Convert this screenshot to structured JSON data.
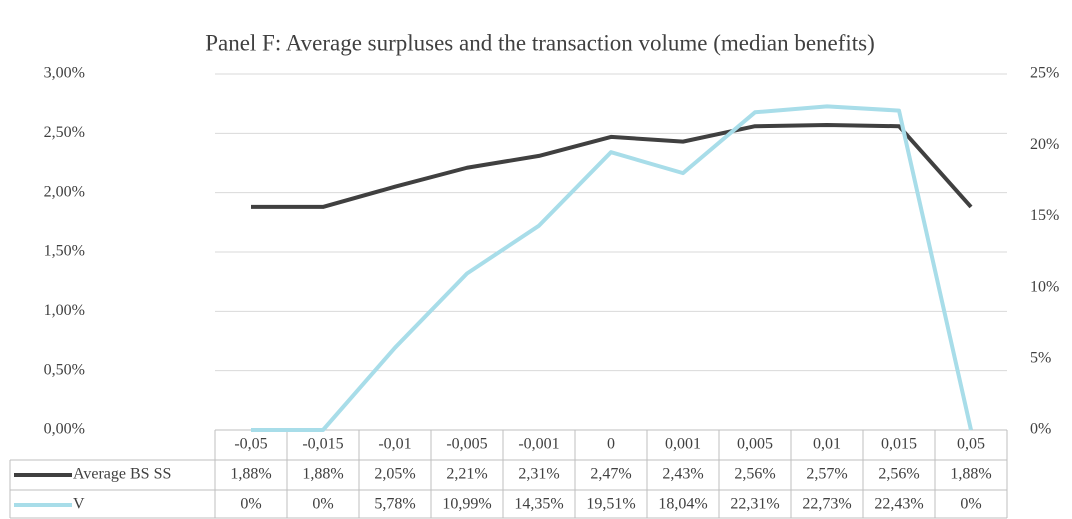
{
  "chart_data": {
    "type": "line",
    "title": "Panel F: Average surpluses and the transaction volume (median benefits)",
    "categories": [
      "-0,05",
      "-0,015",
      "-0,01",
      "-0,005",
      "-0,001",
      "0",
      "0,001",
      "0,005",
      "0,01",
      "0,015",
      "0,05"
    ],
    "series": [
      {
        "name": "Average BS SS",
        "color": "#404040",
        "axis": "y",
        "values": [
          1.88,
          1.88,
          2.05,
          2.21,
          2.31,
          2.47,
          2.43,
          2.56,
          2.57,
          2.56,
          1.88
        ],
        "value_labels": [
          "1,88%",
          "1,88%",
          "2,05%",
          "2,21%",
          "2,31%",
          "2,47%",
          "2,43%",
          "2,56%",
          "2,57%",
          "2,56%",
          "1,88%"
        ]
      },
      {
        "name": "V",
        "color": "#a8dde9",
        "axis": "y2",
        "values": [
          0,
          0,
          5.78,
          10.99,
          14.35,
          19.51,
          18.04,
          22.31,
          22.73,
          22.43,
          0
        ],
        "value_labels": [
          "0%",
          "0%",
          "5,78%",
          "10,99%",
          "14,35%",
          "19,51%",
          "18,04%",
          "22,31%",
          "22,73%",
          "22,43%",
          "0%"
        ]
      }
    ],
    "ylim": [
      0,
      3
    ],
    "yticks": [
      {
        "value": 0,
        "label": "0,00%"
      },
      {
        "value": 0.5,
        "label": "0,50%"
      },
      {
        "value": 1,
        "label": "1,00%"
      },
      {
        "value": 1.5,
        "label": "1,50%"
      },
      {
        "value": 2,
        "label": "2,00%"
      },
      {
        "value": 2.5,
        "label": "2,50%"
      },
      {
        "value": 3,
        "label": "3,00%"
      }
    ],
    "y2lim": [
      0,
      25
    ],
    "y2ticks": [
      {
        "value": 0,
        "label": "0%"
      },
      {
        "value": 5,
        "label": "5%"
      },
      {
        "value": 10,
        "label": "10%"
      },
      {
        "value": 15,
        "label": "15%"
      },
      {
        "value": 20,
        "label": "20%"
      },
      {
        "value": 25,
        "label": "25%"
      }
    ],
    "grid": true,
    "data_table": true
  }
}
